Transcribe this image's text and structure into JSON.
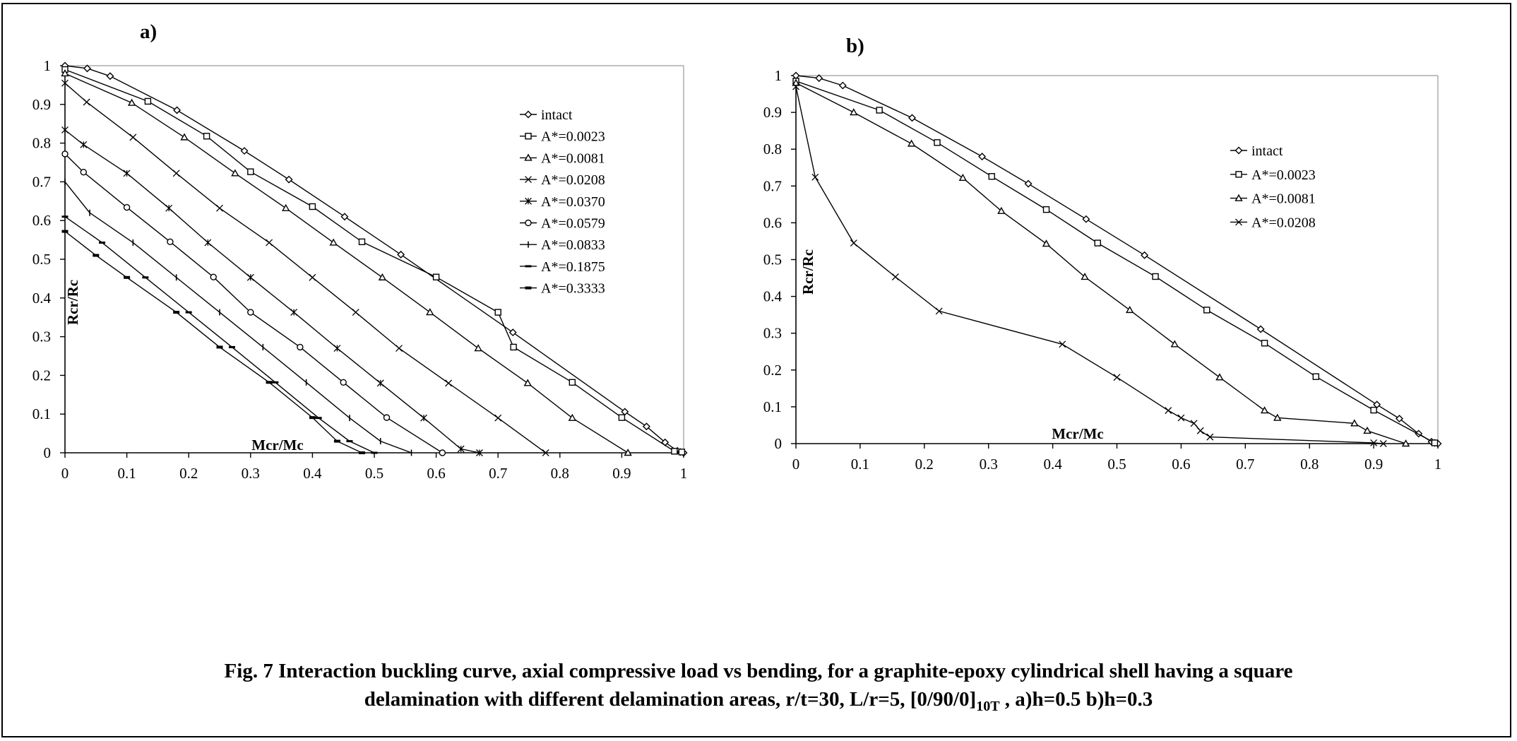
{
  "figure": {
    "caption_line1": "Fig. 7  Interaction buckling curve, axial compressive load vs bending, for a graphite-epoxy cylindrical shell having a square",
    "caption_line2_pre": "delamination with different delamination areas, r/t=30, L/r=5, [0/90/0]",
    "caption_line2_sub": "10T",
    "caption_line2_post": " , a)h=0.5    b)h=0.3"
  },
  "chart_data": [
    {
      "type": "line",
      "panel_label": "a)",
      "xlabel": "Mcr/Mc",
      "ylabel": "Rcr/Rc",
      "xlim": [
        0,
        1
      ],
      "ylim": [
        0,
        1
      ],
      "xticks": [
        "0",
        "0.1",
        "0.2",
        "0.3",
        "0.4",
        "0.5",
        "0.6",
        "0.7",
        "0.8",
        "0.9",
        "1"
      ],
      "yticks": [
        "0",
        "0.1",
        "0.2",
        "0.3",
        "0.4",
        "0.5",
        "0.6",
        "0.7",
        "0.8",
        "0.9",
        "1"
      ],
      "grid": false,
      "legend_position": "right",
      "series": [
        {
          "name": "intact",
          "marker": "diamond",
          "x": [
            0,
            0.036,
            0.073,
            0.181,
            0.29,
            0.362,
            0.452,
            0.543,
            0.724,
            0.905,
            0.94,
            0.97,
            0.99,
            0.995,
            1.0
          ],
          "y": [
            1.0,
            0.993,
            0.973,
            0.885,
            0.78,
            0.706,
            0.61,
            0.512,
            0.311,
            0.106,
            0.068,
            0.027,
            0.005,
            0.002,
            0.0
          ]
        },
        {
          "name": "A*=0.0023",
          "marker": "square",
          "x": [
            0,
            0.134,
            0.229,
            0.3,
            0.4,
            0.48,
            0.6,
            0.7,
            0.725,
            0.82,
            0.9,
            0.985,
            0.997
          ],
          "y": [
            0.99,
            0.908,
            0.818,
            0.726,
            0.636,
            0.545,
            0.454,
            0.363,
            0.273,
            0.182,
            0.091,
            0.004,
            0.002
          ]
        },
        {
          "name": "A*=0.0081",
          "marker": "triangle",
          "x": [
            0,
            0.108,
            0.193,
            0.275,
            0.357,
            0.434,
            0.513,
            0.59,
            0.668,
            0.748,
            0.82,
            0.91
          ],
          "y": [
            0.98,
            0.904,
            0.815,
            0.722,
            0.632,
            0.543,
            0.453,
            0.363,
            0.27,
            0.18,
            0.09,
            0.0
          ]
        },
        {
          "name": "A*=0.0208",
          "marker": "x",
          "x": [
            0,
            0.035,
            0.11,
            0.18,
            0.25,
            0.33,
            0.4,
            0.47,
            0.54,
            0.62,
            0.7,
            0.777
          ],
          "y": [
            0.955,
            0.906,
            0.815,
            0.722,
            0.632,
            0.543,
            0.453,
            0.363,
            0.27,
            0.18,
            0.09,
            0.0
          ]
        },
        {
          "name": "A*=0.0370",
          "marker": "star",
          "x": [
            0,
            0.03,
            0.1,
            0.168,
            0.231,
            0.3,
            0.37,
            0.44,
            0.51,
            0.58,
            0.64,
            0.67
          ],
          "y": [
            0.834,
            0.796,
            0.722,
            0.632,
            0.543,
            0.453,
            0.363,
            0.27,
            0.18,
            0.09,
            0.01,
            0.0
          ]
        },
        {
          "name": "A*=0.0579",
          "marker": "circle",
          "x": [
            0,
            0.03,
            0.1,
            0.17,
            0.24,
            0.3,
            0.38,
            0.45,
            0.52,
            0.61
          ],
          "y": [
            0.772,
            0.725,
            0.634,
            0.545,
            0.454,
            0.363,
            0.273,
            0.182,
            0.091,
            0.0
          ]
        },
        {
          "name": "A*=0.0833",
          "marker": "plus",
          "x": [
            0,
            0.04,
            0.11,
            0.18,
            0.25,
            0.32,
            0.39,
            0.46,
            0.51,
            0.56
          ],
          "y": [
            0.7,
            0.62,
            0.543,
            0.453,
            0.363,
            0.273,
            0.182,
            0.09,
            0.03,
            0.0
          ]
        },
        {
          "name": "A*=0.1875",
          "marker": "dash",
          "x": [
            0,
            0.06,
            0.13,
            0.2,
            0.27,
            0.34,
            0.41,
            0.46,
            0.5
          ],
          "y": [
            0.61,
            0.543,
            0.453,
            0.363,
            0.273,
            0.182,
            0.09,
            0.03,
            0.0
          ]
        },
        {
          "name": "A*=0.3333",
          "marker": "bar",
          "x": [
            0,
            0.05,
            0.1,
            0.18,
            0.25,
            0.33,
            0.4,
            0.44,
            0.48
          ],
          "y": [
            0.572,
            0.51,
            0.453,
            0.363,
            0.273,
            0.182,
            0.091,
            0.03,
            0.0
          ]
        }
      ]
    },
    {
      "type": "line",
      "panel_label": "b)",
      "xlabel": "Mcr/Mc",
      "ylabel": "Rcr/Rc",
      "xlim": [
        0,
        1
      ],
      "ylim": [
        0,
        1
      ],
      "xticks": [
        "0",
        "0.1",
        "0.2",
        "0.3",
        "0.4",
        "0.5",
        "0.6",
        "0.7",
        "0.8",
        "0.9",
        "1"
      ],
      "yticks": [
        "0",
        "0.1",
        "0.2",
        "0.3",
        "0.4",
        "0.5",
        "0.6",
        "0.7",
        "0.8",
        "0.9",
        "1"
      ],
      "grid": false,
      "legend_position": "right",
      "series": [
        {
          "name": "intact",
          "marker": "diamond",
          "x": [
            0,
            0.036,
            0.073,
            0.181,
            0.29,
            0.362,
            0.452,
            0.543,
            0.724,
            0.905,
            0.94,
            0.97,
            0.99,
            0.995,
            1.0
          ],
          "y": [
            1.0,
            0.993,
            0.973,
            0.885,
            0.78,
            0.706,
            0.61,
            0.512,
            0.311,
            0.106,
            0.068,
            0.027,
            0.005,
            0.002,
            0.0
          ]
        },
        {
          "name": "A*=0.0023",
          "marker": "square",
          "x": [
            0,
            0.13,
            0.22,
            0.305,
            0.39,
            0.47,
            0.56,
            0.64,
            0.73,
            0.81,
            0.9,
            0.995
          ],
          "y": [
            0.985,
            0.906,
            0.818,
            0.726,
            0.636,
            0.545,
            0.454,
            0.363,
            0.273,
            0.182,
            0.091,
            0.002
          ]
        },
        {
          "name": "A*=0.0081",
          "marker": "triangle",
          "x": [
            0,
            0.09,
            0.18,
            0.26,
            0.32,
            0.39,
            0.45,
            0.52,
            0.59,
            0.66,
            0.73,
            0.75,
            0.87,
            0.89,
            0.95
          ],
          "y": [
            0.98,
            0.9,
            0.815,
            0.722,
            0.632,
            0.543,
            0.453,
            0.363,
            0.27,
            0.18,
            0.09,
            0.07,
            0.055,
            0.035,
            0.0
          ]
        },
        {
          "name": "A*=0.0208",
          "marker": "x",
          "x": [
            0,
            0.03,
            0.09,
            0.155,
            0.223,
            0.415,
            0.5,
            0.58,
            0.6,
            0.62,
            0.63,
            0.645,
            0.9,
            0.915
          ],
          "y": [
            0.97,
            0.724,
            0.545,
            0.453,
            0.36,
            0.27,
            0.18,
            0.09,
            0.07,
            0.055,
            0.035,
            0.018,
            0.002,
            0.0
          ]
        }
      ]
    }
  ]
}
